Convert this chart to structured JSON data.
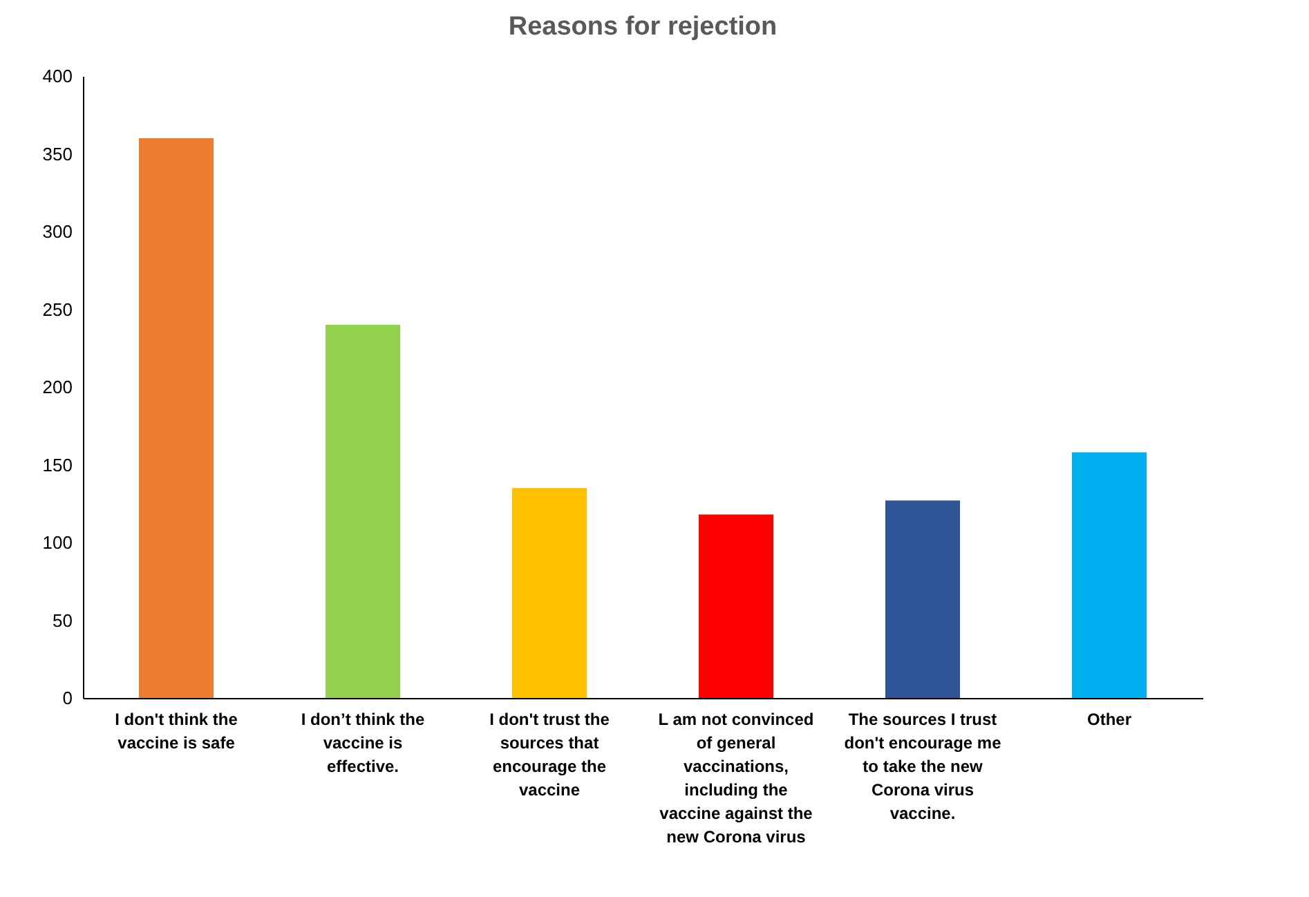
{
  "chart_data": {
    "type": "bar",
    "title": "Reasons for rejection",
    "categories": [
      "I don't think the vaccine is safe",
      "I don’t think the vaccine is effective.",
      "I don't trust the sources that encourage the vaccine",
      "L am  not convinced of general vaccinations, including the vaccine against the new Corona virus",
      "The sources I trust don't encourage me to take the new Corona virus vaccine.",
      "Other"
    ],
    "values": [
      360,
      240,
      135,
      118,
      127,
      158
    ],
    "colors": [
      "#ed7d31",
      "#92d050",
      "#ffc000",
      "#ff0000",
      "#2f5597",
      "#00b0f0"
    ],
    "ylim": [
      0,
      400
    ],
    "yticks": [
      0,
      50,
      100,
      150,
      200,
      250,
      300,
      350,
      400
    ],
    "grid": false
  }
}
